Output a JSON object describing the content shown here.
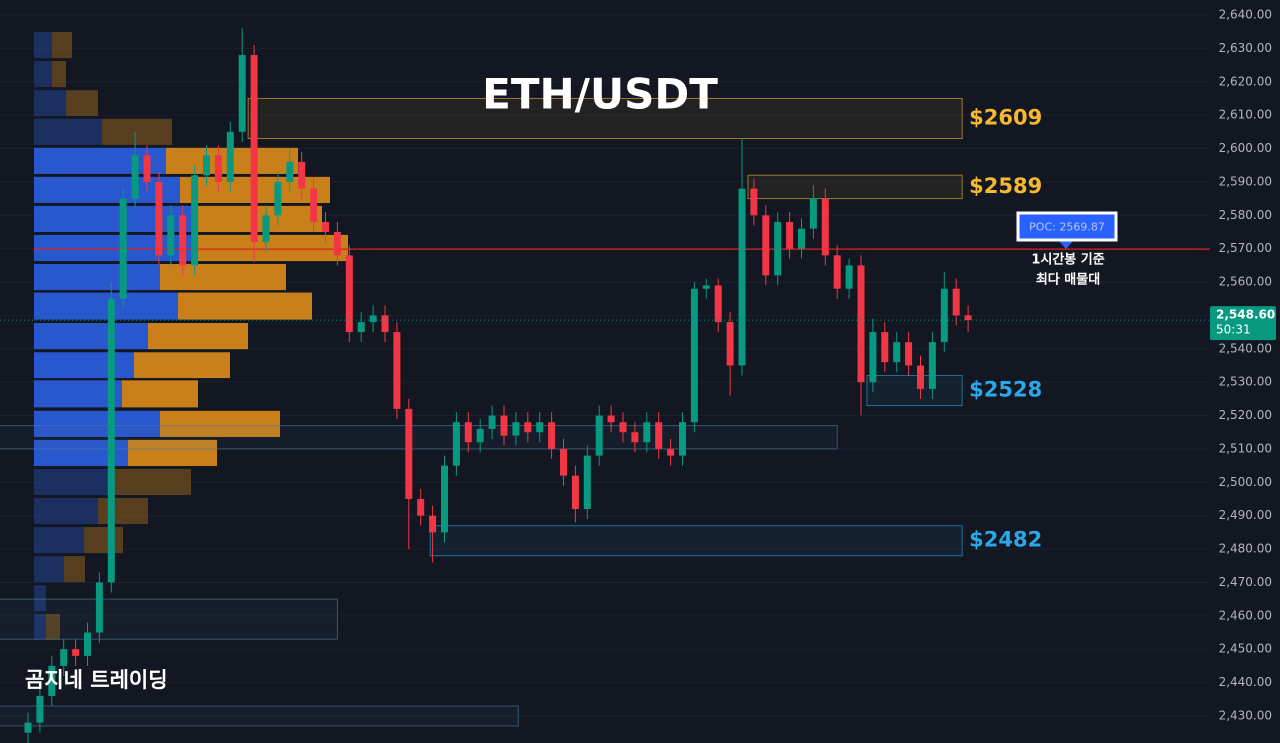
{
  "chart_data": {
    "type": "candlestick",
    "title": "ETH/USDT",
    "watermark": "곰지네 트레이딩",
    "up_color": "#089981",
    "down_color": "#f23645",
    "ylim": [
      2421.9,
      2644.5
    ],
    "grid": true,
    "yticks": [
      {
        "value": 2430,
        "label": "2,430.00"
      },
      {
        "value": 2440,
        "label": "2,440.00"
      },
      {
        "value": 2450,
        "label": "2,450.00"
      },
      {
        "value": 2460,
        "label": "2,460.00"
      },
      {
        "value": 2470,
        "label": "2,470.00"
      },
      {
        "value": 2480,
        "label": "2,480.00"
      },
      {
        "value": 2490,
        "label": "2,490.00"
      },
      {
        "value": 2500,
        "label": "2,500.00"
      },
      {
        "value": 2510,
        "label": "2,510.00"
      },
      {
        "value": 2520,
        "label": "2,520.00"
      },
      {
        "value": 2530,
        "label": "2,530.00"
      },
      {
        "value": 2540,
        "label": "2,540.00"
      },
      {
        "value": 2550,
        "label": "2,550.00"
      },
      {
        "value": 2560,
        "label": "2,560.00"
      },
      {
        "value": 2570,
        "label": "2,570.00"
      },
      {
        "value": 2580,
        "label": "2,580.00"
      },
      {
        "value": 2590,
        "label": "2,590.00"
      },
      {
        "value": 2600,
        "label": "2,600.00"
      },
      {
        "value": 2610,
        "label": "2,610.00"
      },
      {
        "value": 2620,
        "label": "2,620.00"
      },
      {
        "value": 2630,
        "label": "2,630.00"
      },
      {
        "value": 2640,
        "label": "2,640.00"
      }
    ],
    "open": [
      2425,
      2428,
      2436,
      2445,
      2450,
      2448,
      2455,
      2470,
      2555,
      2585,
      2598,
      2590,
      2568,
      2580,
      2565,
      2592,
      2598,
      2590,
      2605,
      2628,
      2572,
      2580,
      2590,
      2596,
      2588,
      2578,
      2575,
      2568,
      2545,
      2548,
      2550,
      2545,
      2522,
      2495,
      2490,
      2485,
      2505,
      2518,
      2512,
      2516,
      2520,
      2514,
      2518,
      2515,
      2518,
      2510,
      2502,
      2492,
      2508,
      2520,
      2518,
      2515,
      2512,
      2518,
      2510,
      2508,
      2518,
      2558,
      2559,
      2548,
      2535,
      2588,
      2580,
      2562,
      2578,
      2570,
      2576,
      2585,
      2568,
      2558,
      2565,
      2530,
      2545,
      2536,
      2542,
      2535,
      2528,
      2542,
      2558,
      2550
    ],
    "high": [
      2431,
      2439,
      2448,
      2453,
      2453,
      2458,
      2473,
      2560,
      2588,
      2605,
      2601,
      2593,
      2583,
      2583,
      2595,
      2601,
      2601,
      2608,
      2636,
      2631,
      2583,
      2593,
      2600,
      2599,
      2591,
      2581,
      2578,
      2571,
      2551,
      2553,
      2553,
      2548,
      2525,
      2498,
      2493,
      2508,
      2521,
      2521,
      2519,
      2523,
      2523,
      2521,
      2521,
      2521,
      2521,
      2513,
      2505,
      2511,
      2523,
      2523,
      2521,
      2518,
      2521,
      2521,
      2513,
      2521,
      2560,
      2561,
      2561,
      2551,
      2603,
      2591,
      2583,
      2581,
      2581,
      2579,
      2589,
      2588,
      2571,
      2567,
      2568,
      2549,
      2548,
      2545,
      2545,
      2538,
      2545,
      2563,
      2561,
      2553
    ],
    "low": [
      2420,
      2425,
      2433,
      2442,
      2445,
      2445,
      2452,
      2467,
      2552,
      2582,
      2587,
      2565,
      2565,
      2562,
      2562,
      2589,
      2587,
      2587,
      2602,
      2566,
      2569,
      2577,
      2587,
      2585,
      2575,
      2572,
      2565,
      2542,
      2542,
      2545,
      2542,
      2519,
      2480,
      2487,
      2476,
      2482,
      2502,
      2509,
      2509,
      2513,
      2511,
      2511,
      2512,
      2512,
      2507,
      2499,
      2488,
      2489,
      2505,
      2515,
      2512,
      2509,
      2509,
      2507,
      2505,
      2505,
      2515,
      2555,
      2545,
      2526,
      2532,
      2577,
      2559,
      2559,
      2567,
      2567,
      2573,
      2565,
      2555,
      2555,
      2520,
      2527,
      2533,
      2533,
      2532,
      2525,
      2525,
      2539,
      2547,
      2545
    ],
    "close": [
      2428,
      2436,
      2445,
      2450,
      2448,
      2455,
      2470,
      2555,
      2585,
      2598,
      2590,
      2568,
      2580,
      2565,
      2592,
      2598,
      2590,
      2605,
      2628,
      2572,
      2580,
      2590,
      2596,
      2588,
      2578,
      2575,
      2568,
      2545,
      2548,
      2550,
      2545,
      2522,
      2495,
      2490,
      2485,
      2505,
      2518,
      2512,
      2516,
      2520,
      2514,
      2518,
      2515,
      2518,
      2510,
      2502,
      2492,
      2508,
      2520,
      2518,
      2515,
      2512,
      2518,
      2510,
      2508,
      2518,
      2558,
      2559,
      2548,
      2535,
      2588,
      2580,
      2562,
      2578,
      2570,
      2576,
      2585,
      2568,
      2558,
      2565,
      2530,
      2545,
      2536,
      2542,
      2535,
      2528,
      2542,
      2558,
      2550,
      2548.6
    ],
    "last_price": {
      "value": 2548.6,
      "label": "2,548.60"
    },
    "countdown": "50:31",
    "profile": {
      "buy_color": "#2a5bd7",
      "sell_color": "#d4861a",
      "prices": [
        2631.0,
        2622.3,
        2613.6,
        2605.0,
        2596.3,
        2587.6,
        2578.9,
        2570.2,
        2561.5,
        2552.8,
        2543.8,
        2535.1,
        2526.5,
        2517.5,
        2508.8,
        2500.1,
        2491.4,
        2482.7,
        2474.0,
        2465.3,
        2456.7
      ],
      "buy": [
        18,
        18,
        32,
        68,
        132,
        146,
        158,
        164,
        126,
        144,
        114,
        100,
        88,
        126,
        94,
        74,
        64,
        50,
        30,
        12,
        12
      ],
      "sell": [
        20,
        14,
        32,
        70,
        132,
        150,
        130,
        150,
        126,
        134,
        100,
        96,
        76,
        120,
        89,
        83,
        50,
        39,
        21,
        0,
        14
      ],
      "in_value_area": [
        false,
        false,
        false,
        false,
        true,
        true,
        true,
        true,
        true,
        true,
        true,
        true,
        true,
        true,
        true,
        false,
        false,
        false,
        false,
        false,
        false
      ]
    },
    "poc": {
      "value": 2569.87,
      "label": "POC: 2569.87",
      "color": "#e02020"
    },
    "annotation": [
      "1시간봉 기준",
      "최다 매물대"
    ],
    "zones": [
      {
        "label": "$2609",
        "low": 2603,
        "high": 2615,
        "start": 18.5,
        "end": 78.5,
        "color": "#f5b82e"
      },
      {
        "label": "$2589",
        "low": 2585,
        "high": 2592,
        "start": 60.5,
        "end": 78.5,
        "color": "#f5b82e"
      },
      {
        "label": "$2528",
        "low": 2523,
        "high": 2532,
        "start": 70.5,
        "end": 78.5,
        "color": "#2aa8e8"
      },
      {
        "label": "$2482",
        "low": 2478,
        "high": 2487,
        "start": 33.8,
        "end": 78.5,
        "color": "#2aa8e8"
      },
      {
        "low": 2510,
        "high": 2517,
        "start": -3,
        "end": 68,
        "color": "#4a7ea8"
      },
      {
        "low": 2453,
        "high": 2465,
        "start": -3,
        "end": 26,
        "color": "#4a7ea8"
      },
      {
        "low": 2427,
        "high": 2433,
        "start": -3,
        "end": 41.2,
        "color": "#4a7ea8"
      }
    ]
  }
}
